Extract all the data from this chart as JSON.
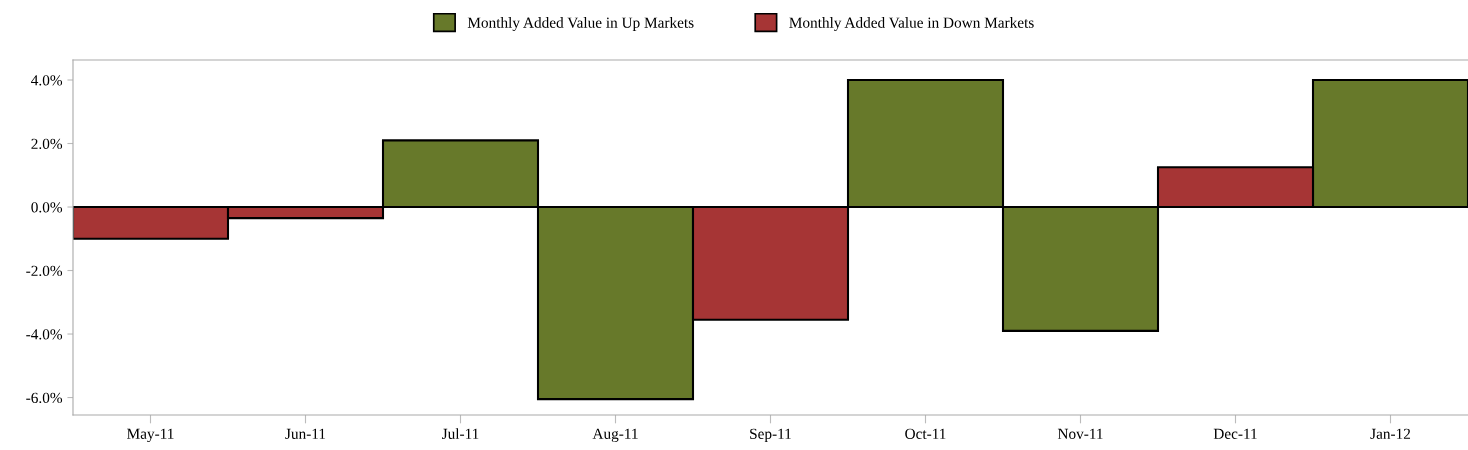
{
  "chart_data": {
    "type": "bar",
    "categories": [
      "May-11",
      "Jun-11",
      "Jul-11",
      "Aug-11",
      "Sep-11",
      "Oct-11",
      "Nov-11",
      "Dec-11",
      "Jan-12"
    ],
    "series": [
      {
        "name": "Monthly Added Value in Up Markets",
        "color": "#67792a",
        "values": [
          null,
          null,
          2.1,
          -6.05,
          null,
          4.0,
          -3.9,
          null,
          4.0
        ]
      },
      {
        "name": "Monthly Added Value in Down Markets",
        "color": "#a63535",
        "values": [
          -1.0,
          -0.35,
          null,
          null,
          -3.55,
          null,
          null,
          1.25,
          null
        ]
      }
    ],
    "ylim": [
      -6.55,
      4.63
    ],
    "yticks": [
      {
        "value": -6,
        "label": "-6.0%"
      },
      {
        "value": -4,
        "label": "-4.0%"
      },
      {
        "value": -2,
        "label": "-2.0%"
      },
      {
        "value": 0,
        "label": "0.0%"
      },
      {
        "value": 2,
        "label": "2.0%"
      },
      {
        "value": 4,
        "label": "4.0%"
      }
    ],
    "grid": false,
    "legend": "top"
  }
}
